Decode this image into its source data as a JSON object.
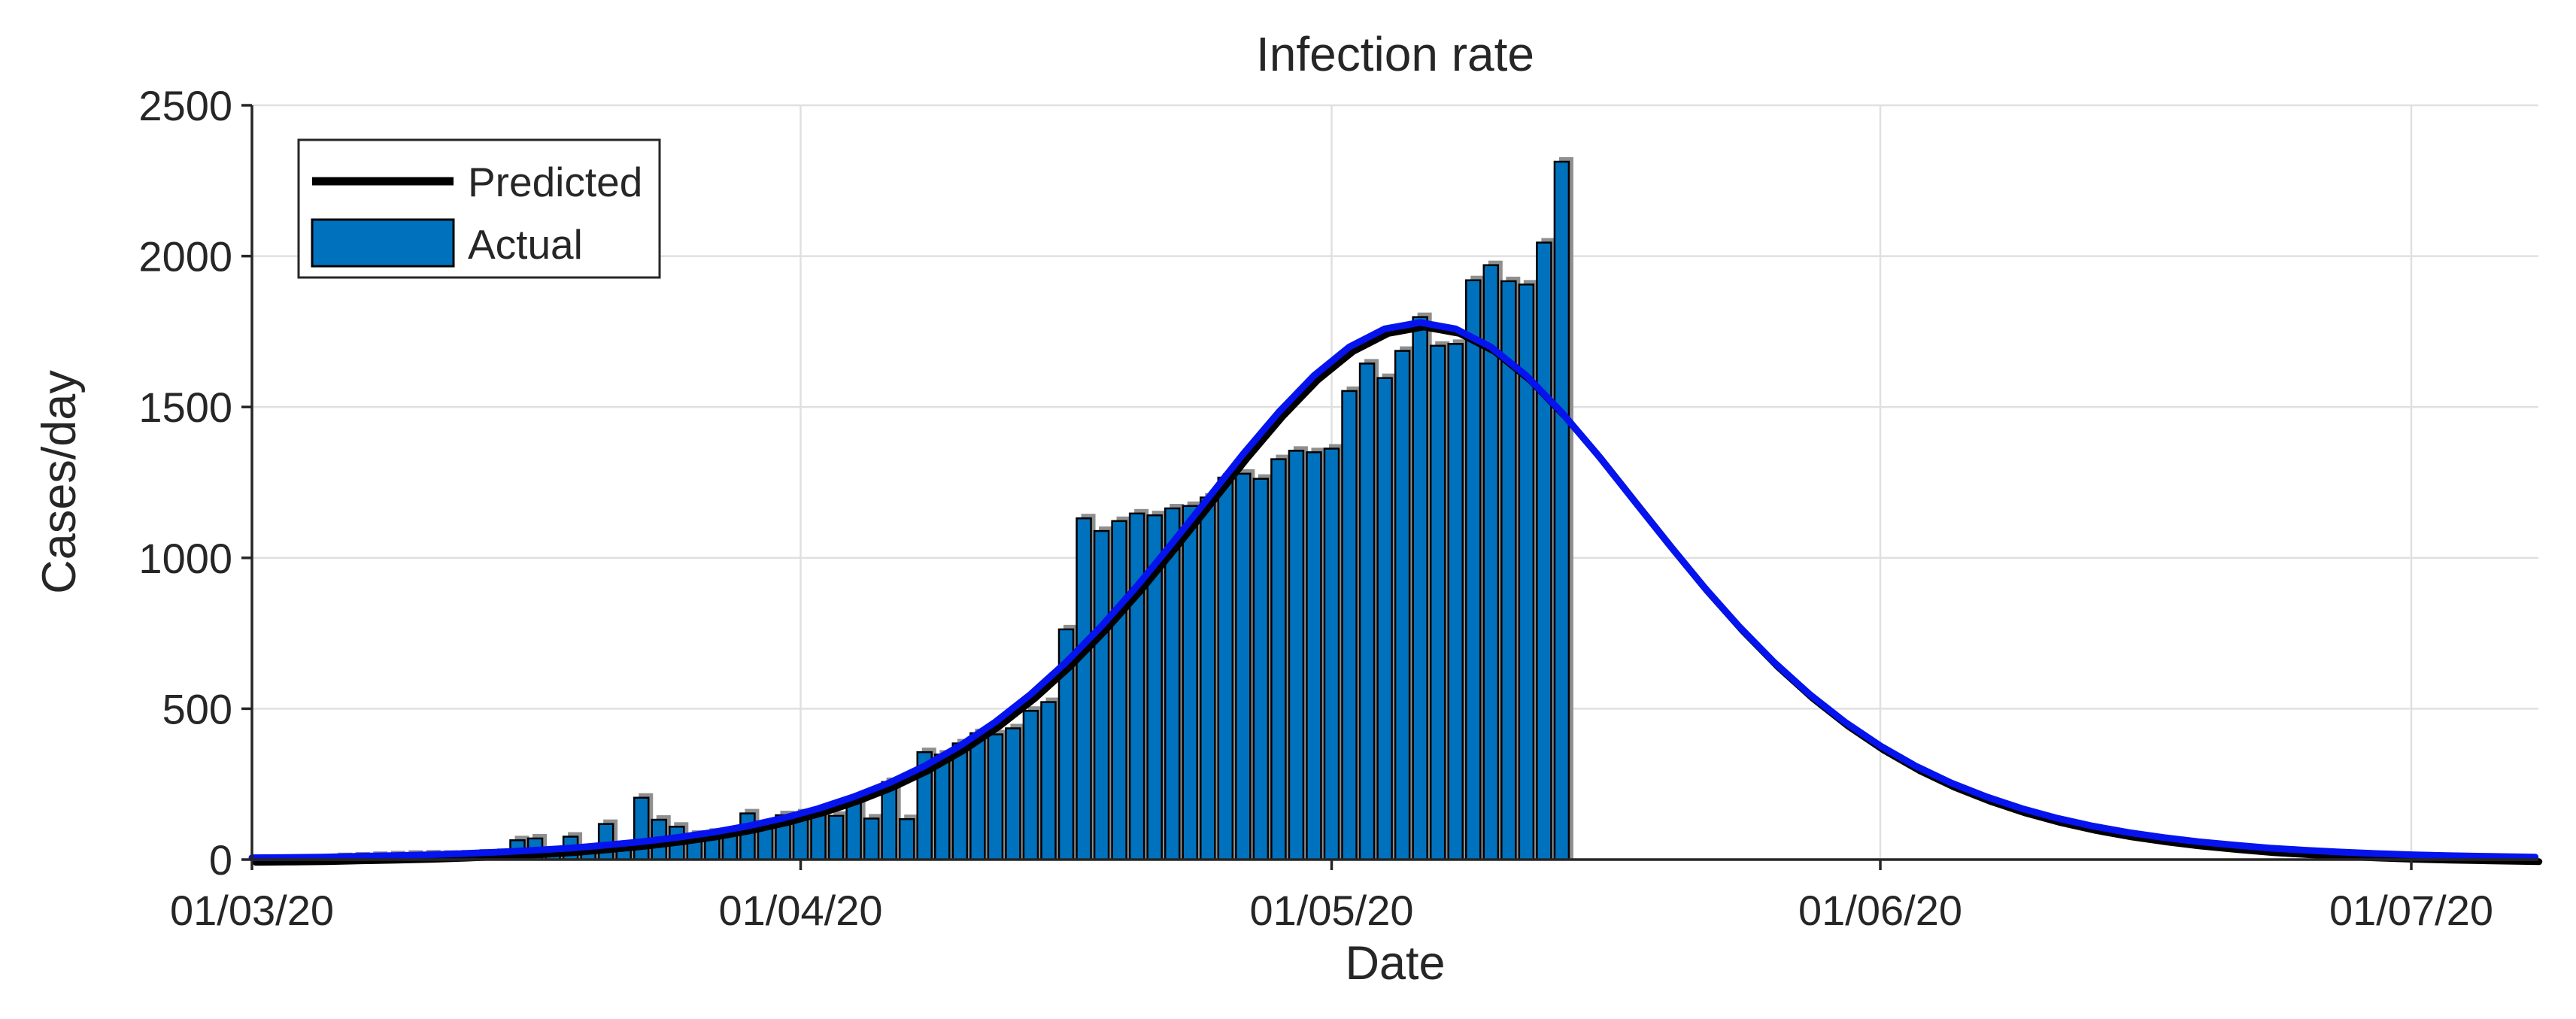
{
  "figure": {
    "title": "Infection rate",
    "xlabel": "Date",
    "ylabel": "Cases/day",
    "legend": {
      "predicted_label": "Predicted",
      "actual_label": "Actual"
    },
    "colors": {
      "background": "#ffffff",
      "bar_fill": "#0072BD",
      "bar_edge": "#000000",
      "bar_shadow": "#8f8f8f",
      "line_blue": "#0513ee",
      "line_black": "#000000",
      "grid": "#e0e0e0",
      "axis": "#262626",
      "text": "#262626"
    }
  },
  "chart_data": {
    "type": "bar",
    "title": "Infection rate",
    "xlabel": "Date",
    "ylabel": "Cases/day",
    "ylim": [
      0,
      2500
    ],
    "yticks": [
      0,
      500,
      1000,
      1500,
      2000,
      2500
    ],
    "xtick_labels": [
      "01/03/20",
      "01/04/20",
      "01/05/20",
      "01/06/20",
      "01/07/20"
    ],
    "xtick_day_offsets": [
      0,
      31,
      61,
      92,
      122
    ],
    "x_axis_span_days": 129,
    "grid": true,
    "legend_position": "top-left",
    "series": [
      {
        "name": "Actual",
        "type": "bar",
        "start_day_offset": 5,
        "dates": [
          "06/03/20",
          "07/03/20",
          "08/03/20",
          "09/03/20",
          "10/03/20",
          "11/03/20",
          "12/03/20",
          "13/03/20",
          "14/03/20",
          "15/03/20",
          "16/03/20",
          "17/03/20",
          "18/03/20",
          "19/03/20",
          "20/03/20",
          "21/03/20",
          "22/03/20",
          "23/03/20",
          "24/03/20",
          "25/03/20",
          "26/03/20",
          "27/03/20",
          "28/03/20",
          "29/03/20",
          "30/03/20",
          "31/03/20",
          "01/04/20",
          "02/04/20",
          "03/04/20",
          "04/04/20",
          "05/04/20",
          "06/04/20",
          "07/04/20",
          "08/04/20",
          "09/04/20",
          "10/04/20",
          "11/04/20",
          "12/04/20",
          "13/04/20",
          "14/04/20",
          "15/04/20",
          "16/04/20",
          "17/04/20",
          "18/04/20",
          "19/04/20",
          "20/04/20",
          "21/04/20",
          "22/04/20",
          "23/04/20",
          "24/04/20",
          "25/04/20",
          "26/04/20",
          "27/04/20",
          "28/04/20",
          "29/04/20",
          "30/04/20",
          "01/05/20",
          "02/05/20",
          "03/05/20",
          "04/05/20",
          "05/05/20",
          "06/05/20",
          "07/05/20",
          "08/05/20",
          "09/05/20",
          "10/05/20",
          "11/05/20",
          "12/05/20",
          "13/05/20",
          "14/05/20"
        ],
        "values": [
          8,
          10,
          12,
          14,
          16,
          17,
          16,
          17,
          20,
          22,
          64,
          70,
          24,
          76,
          34,
          118,
          31,
          205,
          132,
          109,
          82,
          89,
          88,
          153,
          105,
          147,
          153,
          150,
          145,
          200,
          136,
          257,
          134,
          356,
          348,
          385,
          419,
          415,
          435,
          493,
          522,
          763,
          1131,
          1089,
          1122,
          1147,
          1141,
          1164,
          1172,
          1200,
          1266,
          1279,
          1262,
          1327,
          1355,
          1350,
          1362,
          1553,
          1644,
          1596,
          1686,
          1798,
          1703,
          1709,
          1920,
          1970,
          1917,
          1906,
          2045,
          2313
        ]
      },
      {
        "name": "Predicted",
        "type": "line",
        "peak_value": 1780,
        "peak_day_offset": 66,
        "day_offsets": [
          0,
          2,
          4,
          6,
          8,
          10,
          12,
          14,
          16,
          18,
          20,
          22,
          24,
          26,
          28,
          30,
          32,
          34,
          36,
          38,
          40,
          42,
          44,
          46,
          48,
          50,
          52,
          54,
          56,
          58,
          60,
          62,
          64,
          66,
          68,
          70,
          72,
          74,
          76,
          78,
          80,
          82,
          84,
          86,
          88,
          90,
          92,
          94,
          96,
          98,
          100,
          102,
          104,
          106,
          108,
          110,
          112,
          114,
          116,
          118,
          120,
          122,
          124,
          126,
          128,
          129
        ],
        "values": [
          6,
          7,
          8,
          11,
          13,
          16,
          20,
          25,
          31,
          38,
          48,
          59,
          73,
          90,
          111,
          137,
          169,
          208,
          254,
          310,
          377,
          456,
          548,
          654,
          774,
          906,
          1049,
          1196,
          1344,
          1482,
          1604,
          1699,
          1759,
          1780,
          1759,
          1699,
          1604,
          1482,
          1344,
          1196,
          1049,
          906,
          774,
          654,
          548,
          456,
          377,
          310,
          254,
          208,
          169,
          137,
          111,
          90,
          73,
          59,
          48,
          38,
          31,
          25,
          20,
          16,
          13,
          11,
          9,
          8
        ]
      }
    ]
  }
}
